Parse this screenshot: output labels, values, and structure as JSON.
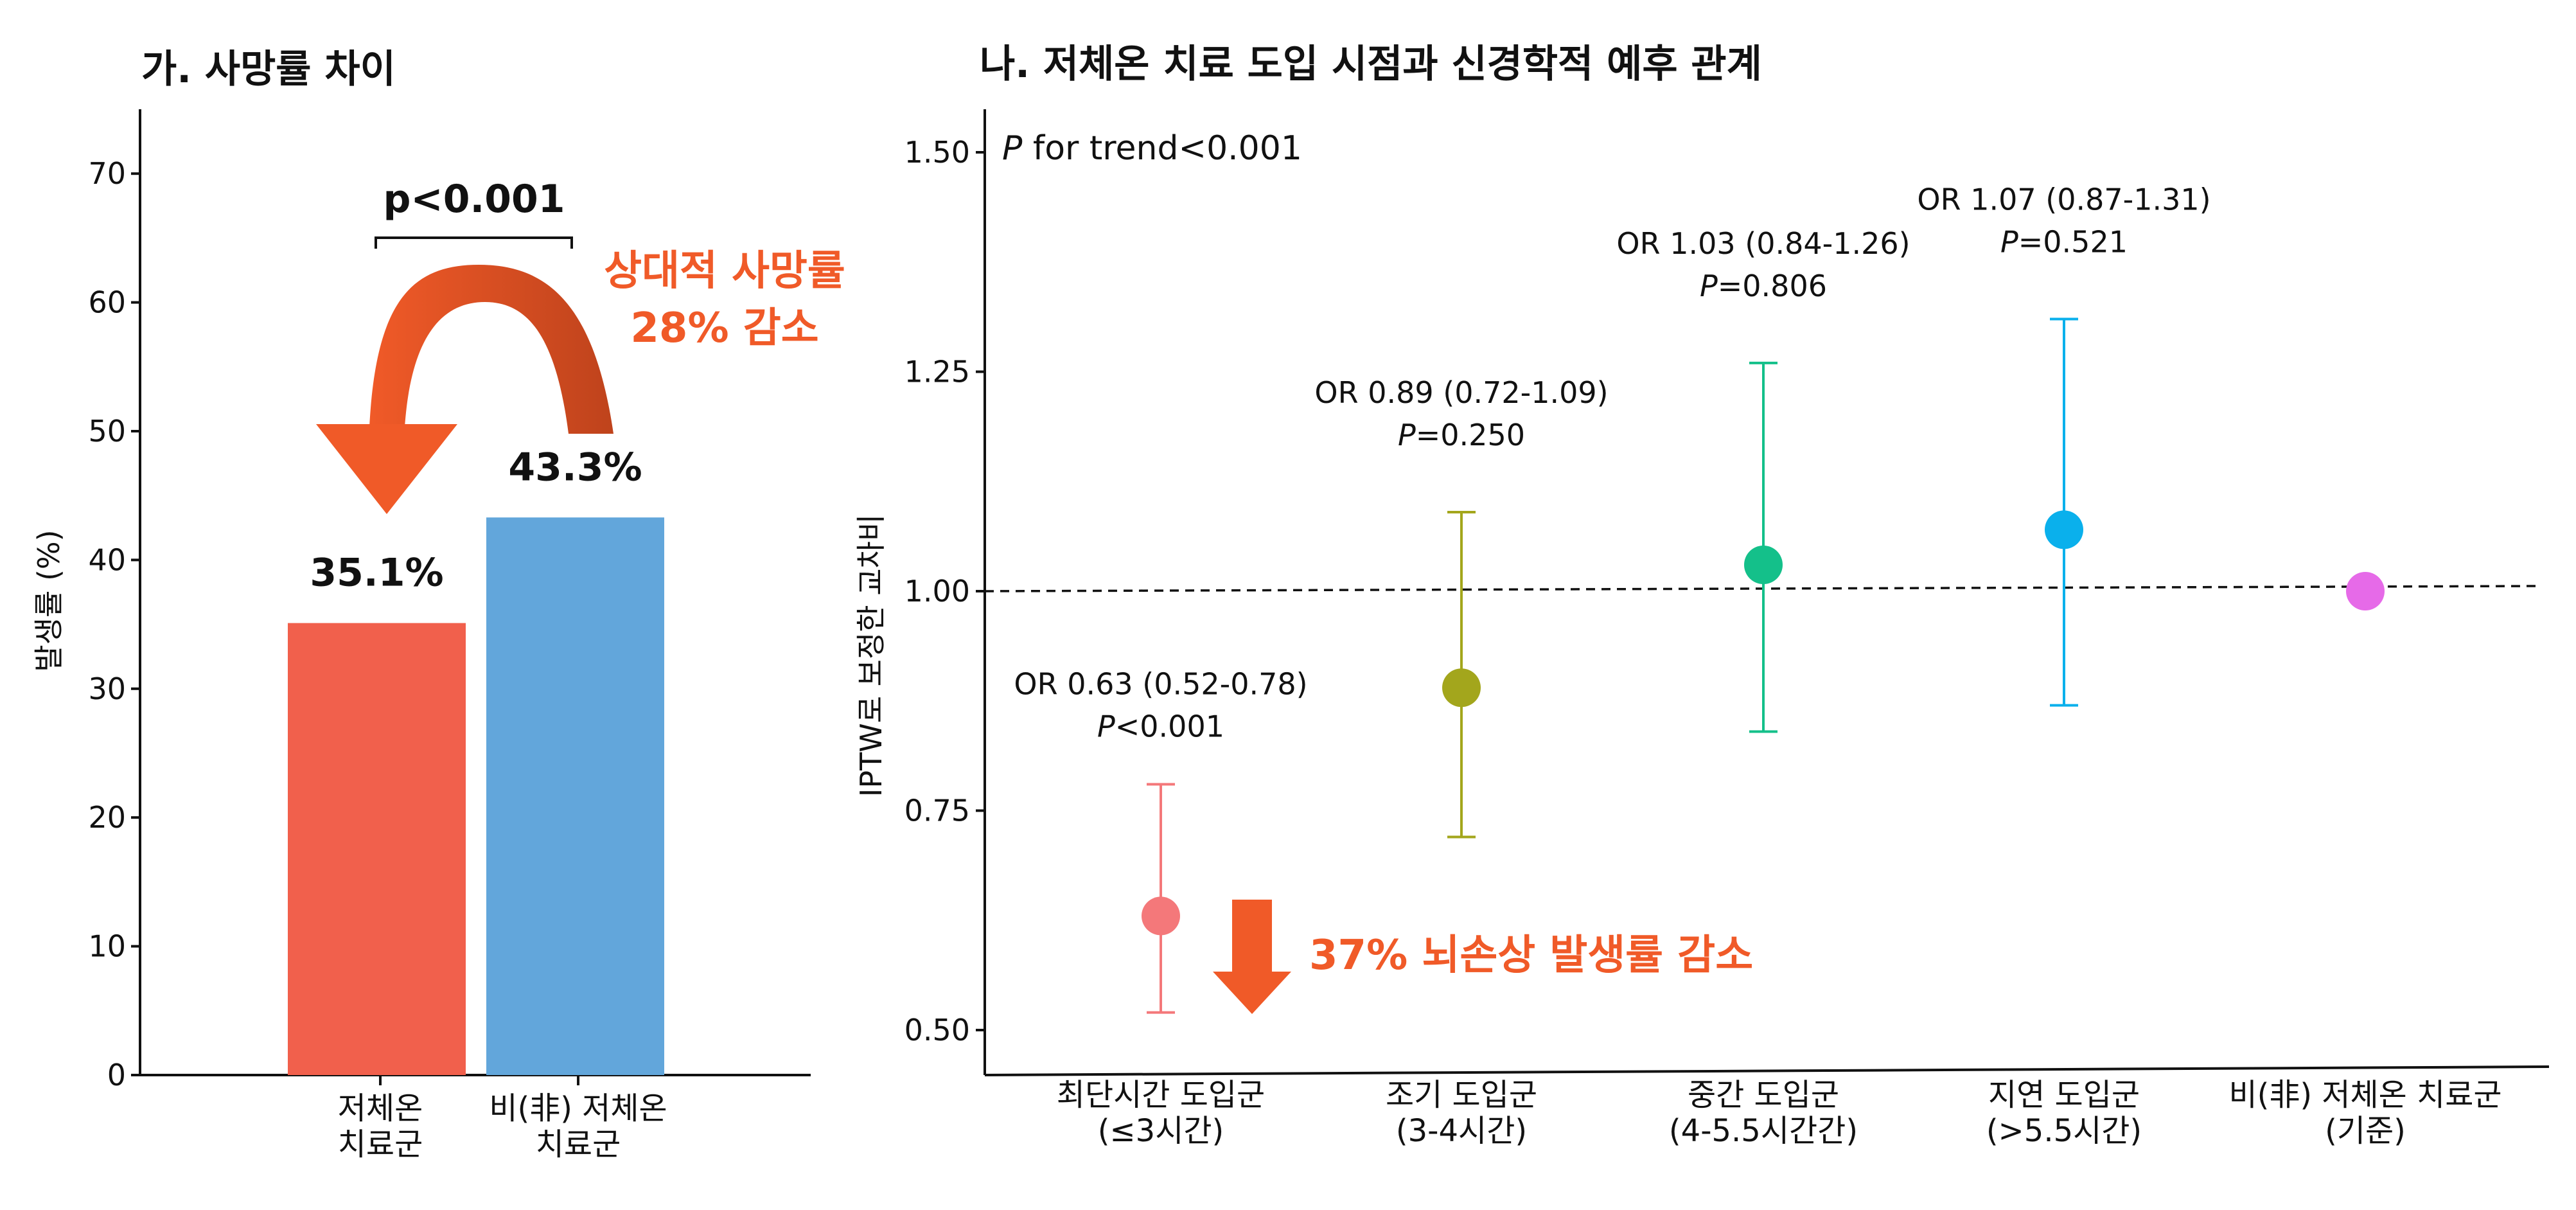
{
  "colors": {
    "accent": "#F05A28",
    "accent_dark": "#C9471E",
    "bar_treated": "#F1604C",
    "bar_untreated": "#62A6DB"
  },
  "chart_data": [
    {
      "type": "bar",
      "title": "가. 사망률 차이",
      "ylabel": "발생률 (%)",
      "ylim": [
        0,
        75
      ],
      "yticks": [
        0,
        10,
        20,
        30,
        40,
        50,
        60,
        70
      ],
      "categories": [
        "저체온 치료군",
        "비(非) 저체온 치료군"
      ],
      "category_lines": [
        [
          "저체온",
          "치료군"
        ],
        [
          "비(非) 저체온",
          "치료군"
        ]
      ],
      "values": [
        35.1,
        43.3
      ],
      "value_labels": [
        "35.1%",
        "43.3%"
      ],
      "colors": [
        "#F1604C",
        "#62A6DB"
      ],
      "significance": "p<0.001",
      "callout": [
        "상대적 사망률",
        "28% 감소"
      ]
    },
    {
      "type": "scatter",
      "title": "나. 저체온 치료 도입 시점과 신경학적 예후 관계",
      "ylabel": "IPTW로 보정한 교차비",
      "ylim": [
        0.45,
        1.55
      ],
      "yticks": [
        "0.50",
        "0.75",
        "1.00",
        "1.25",
        "1.50"
      ],
      "reference_line": 1.0,
      "trend_p_label": "P",
      "trend_rest": " for trend<0.001",
      "categories": [
        [
          "최단시간 도입군",
          "(≤3시간)"
        ],
        [
          "조기 도입군",
          "(3-4시간)"
        ],
        [
          "중간 도입군",
          "(4-5.5시간간)"
        ],
        [
          "지연 도입군",
          "(>5.5시간)"
        ],
        [
          "비(非) 저체온 치료군",
          "(기준)"
        ]
      ],
      "or": [
        0.63,
        0.89,
        1.03,
        1.07,
        1.0
      ],
      "ci_low": [
        0.52,
        0.72,
        0.84,
        0.87,
        null
      ],
      "ci_high": [
        0.78,
        1.09,
        1.26,
        1.31,
        null
      ],
      "or_labels": [
        "OR 0.63 (0.52-0.78)",
        "OR 0.89 (0.72-1.09)",
        "OR 1.03 (0.84-1.26)",
        "OR 1.07 (0.87-1.31)",
        ""
      ],
      "p_labels": [
        "P<0.001",
        "P=0.250",
        "P=0.806",
        "P=0.521",
        ""
      ],
      "colors": [
        "#F4787A",
        "#A3A61C",
        "#14C08A",
        "#0AB0EC",
        "#E66AE8"
      ],
      "callout": "37% 뇌손상 발생률 감소"
    }
  ]
}
